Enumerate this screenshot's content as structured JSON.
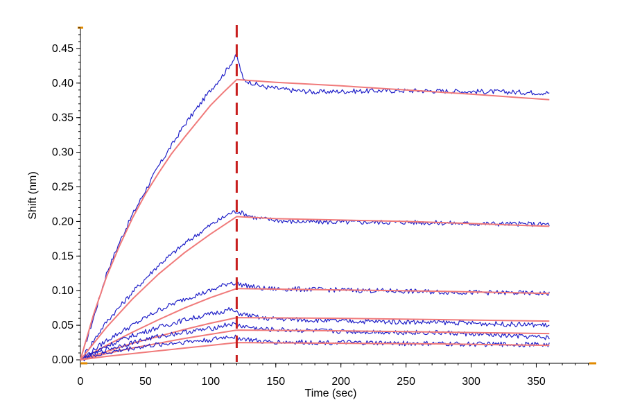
{
  "chart_data": {
    "type": "line",
    "xlabel": "Time (sec)",
    "ylabel": "Shift (nm)",
    "xlim": [
      0,
      395
    ],
    "ylim": [
      -0.005,
      0.48
    ],
    "x_ticks": [
      0,
      50,
      100,
      150,
      200,
      250,
      300,
      350
    ],
    "y_ticks": [
      0.0,
      0.05,
      0.1,
      0.15,
      0.2,
      0.25,
      0.3,
      0.35,
      0.4,
      0.45
    ],
    "x_tick_labels": [
      "0",
      "50",
      "100",
      "150",
      "200",
      "250",
      "300",
      "350"
    ],
    "y_tick_labels": [
      "0.00",
      "0.05",
      "0.10",
      "0.15",
      "0.20",
      "0.25",
      "0.30",
      "0.35",
      "0.40",
      "0.45"
    ],
    "association_end_x": 120,
    "grid": false,
    "colors": {
      "measured": "#1f1fc8",
      "fit": "#f07a7a",
      "marker": "#c81e1e",
      "axis_ends": "#e08a00"
    },
    "series": [
      {
        "fit_points": [
          [
            0,
            0
          ],
          [
            10,
            0.065
          ],
          [
            20,
            0.12
          ],
          [
            30,
            0.165
          ],
          [
            40,
            0.205
          ],
          [
            50,
            0.24
          ],
          [
            60,
            0.27
          ],
          [
            70,
            0.298
          ],
          [
            80,
            0.322
          ],
          [
            90,
            0.345
          ],
          [
            100,
            0.368
          ],
          [
            110,
            0.387
          ],
          [
            120,
            0.405
          ],
          [
            150,
            0.401
          ],
          [
            200,
            0.396
          ],
          [
            250,
            0.39
          ],
          [
            300,
            0.384
          ],
          [
            360,
            0.376
          ]
        ],
        "measured_points": [
          [
            0,
            0
          ],
          [
            10,
            0.06
          ],
          [
            20,
            0.125
          ],
          [
            30,
            0.17
          ],
          [
            40,
            0.21
          ],
          [
            50,
            0.245
          ],
          [
            60,
            0.28
          ],
          [
            70,
            0.31
          ],
          [
            80,
            0.34
          ],
          [
            90,
            0.365
          ],
          [
            100,
            0.39
          ],
          [
            110,
            0.413
          ],
          [
            118,
            0.435
          ],
          [
            120,
            0.44
          ],
          [
            125,
            0.405
          ],
          [
            140,
            0.395
          ],
          [
            160,
            0.39
          ],
          [
            180,
            0.387
          ],
          [
            200,
            0.388
          ],
          [
            230,
            0.389
          ],
          [
            260,
            0.389
          ],
          [
            300,
            0.388
          ],
          [
            330,
            0.387
          ],
          [
            360,
            0.386
          ]
        ]
      },
      {
        "fit_points": [
          [
            0,
            0
          ],
          [
            20,
            0.047
          ],
          [
            40,
            0.088
          ],
          [
            60,
            0.124
          ],
          [
            80,
            0.155
          ],
          [
            100,
            0.182
          ],
          [
            120,
            0.207
          ],
          [
            150,
            0.204
          ],
          [
            200,
            0.202
          ],
          [
            250,
            0.2
          ],
          [
            300,
            0.197
          ],
          [
            360,
            0.193
          ]
        ],
        "measured_points": [
          [
            0,
            0
          ],
          [
            20,
            0.055
          ],
          [
            40,
            0.098
          ],
          [
            60,
            0.137
          ],
          [
            80,
            0.168
          ],
          [
            100,
            0.195
          ],
          [
            115,
            0.212
          ],
          [
            120,
            0.215
          ],
          [
            135,
            0.205
          ],
          [
            160,
            0.2
          ],
          [
            200,
            0.199
          ],
          [
            250,
            0.199
          ],
          [
            300,
            0.197
          ],
          [
            360,
            0.196
          ]
        ]
      },
      {
        "fit_points": [
          [
            0,
            0
          ],
          [
            20,
            0.021
          ],
          [
            40,
            0.04
          ],
          [
            60,
            0.058
          ],
          [
            80,
            0.075
          ],
          [
            100,
            0.09
          ],
          [
            120,
            0.103
          ],
          [
            200,
            0.101
          ],
          [
            280,
            0.099
          ],
          [
            360,
            0.096
          ]
        ],
        "measured_points": [
          [
            0,
            0
          ],
          [
            20,
            0.028
          ],
          [
            40,
            0.05
          ],
          [
            60,
            0.072
          ],
          [
            80,
            0.088
          ],
          [
            100,
            0.1
          ],
          [
            115,
            0.112
          ],
          [
            120,
            0.11
          ],
          [
            140,
            0.103
          ],
          [
            200,
            0.101
          ],
          [
            280,
            0.098
          ],
          [
            360,
            0.096
          ]
        ]
      },
      {
        "fit_points": [
          [
            0,
            0
          ],
          [
            20,
            0.012
          ],
          [
            40,
            0.024
          ],
          [
            60,
            0.034
          ],
          [
            80,
            0.044
          ],
          [
            100,
            0.053
          ],
          [
            120,
            0.061
          ],
          [
            200,
            0.06
          ],
          [
            280,
            0.058
          ],
          [
            360,
            0.056
          ]
        ],
        "measured_points": [
          [
            0,
            0
          ],
          [
            20,
            0.02
          ],
          [
            40,
            0.035
          ],
          [
            60,
            0.047
          ],
          [
            80,
            0.058
          ],
          [
            100,
            0.066
          ],
          [
            115,
            0.073
          ],
          [
            120,
            0.068
          ],
          [
            140,
            0.06
          ],
          [
            200,
            0.056
          ],
          [
            280,
            0.054
          ],
          [
            360,
            0.05
          ]
        ]
      },
      {
        "fit_points": [
          [
            0,
            0
          ],
          [
            20,
            0.009
          ],
          [
            40,
            0.017
          ],
          [
            60,
            0.024
          ],
          [
            80,
            0.031
          ],
          [
            100,
            0.037
          ],
          [
            120,
            0.043
          ],
          [
            200,
            0.042
          ],
          [
            280,
            0.04
          ],
          [
            360,
            0.038
          ]
        ],
        "measured_points": [
          [
            0,
            0
          ],
          [
            20,
            0.015
          ],
          [
            40,
            0.025
          ],
          [
            60,
            0.034
          ],
          [
            80,
            0.04
          ],
          [
            100,
            0.045
          ],
          [
            115,
            0.052
          ],
          [
            120,
            0.05
          ],
          [
            140,
            0.044
          ],
          [
            200,
            0.041
          ],
          [
            280,
            0.039
          ],
          [
            360,
            0.032
          ]
        ]
      },
      {
        "fit_points": [
          [
            0,
            0
          ],
          [
            20,
            0.005
          ],
          [
            40,
            0.009
          ],
          [
            60,
            0.013
          ],
          [
            80,
            0.017
          ],
          [
            100,
            0.021
          ],
          [
            120,
            0.025
          ],
          [
            200,
            0.024
          ],
          [
            280,
            0.023
          ],
          [
            360,
            0.021
          ]
        ],
        "measured_points": [
          [
            0,
            0
          ],
          [
            20,
            0.01
          ],
          [
            40,
            0.017
          ],
          [
            60,
            0.022
          ],
          [
            80,
            0.026
          ],
          [
            100,
            0.029
          ],
          [
            115,
            0.034
          ],
          [
            120,
            0.032
          ],
          [
            140,
            0.026
          ],
          [
            200,
            0.025
          ],
          [
            280,
            0.023
          ],
          [
            360,
            0.022
          ]
        ]
      }
    ]
  }
}
